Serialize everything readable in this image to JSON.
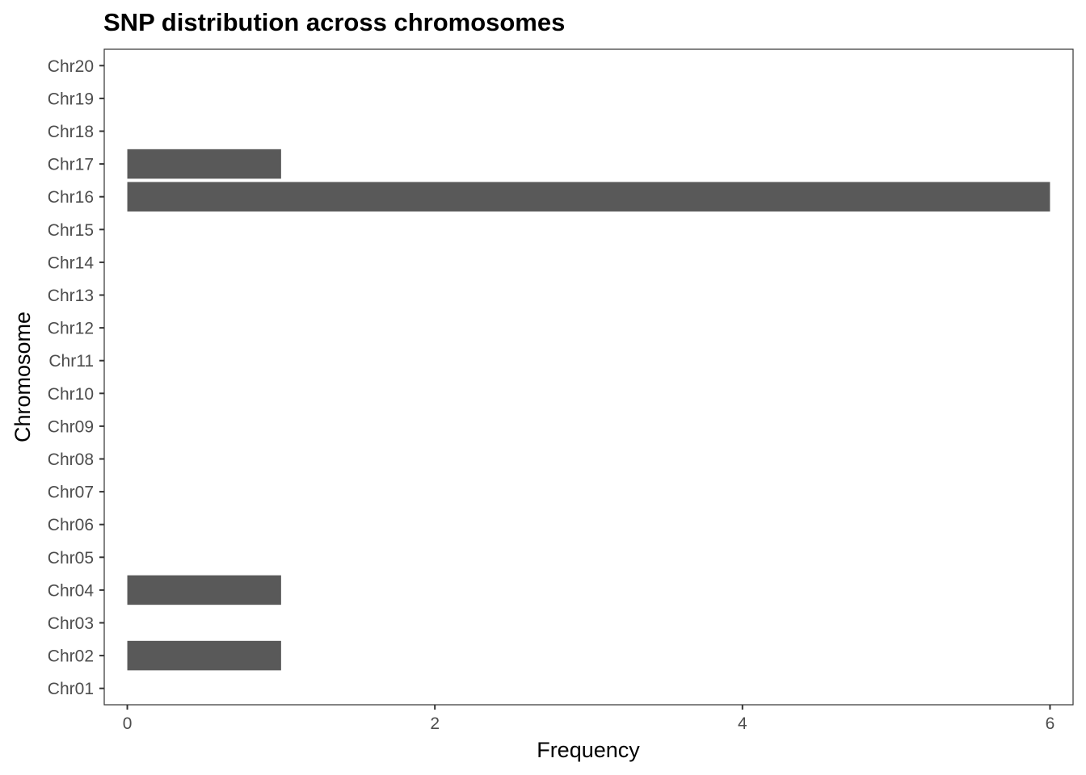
{
  "chart_data": {
    "type": "bar",
    "orientation": "horizontal",
    "title": "SNP distribution across chromosomes",
    "xlabel": "Frequency",
    "ylabel": "Chromosome",
    "categories": [
      "Chr01",
      "Chr02",
      "Chr03",
      "Chr04",
      "Chr05",
      "Chr06",
      "Chr07",
      "Chr08",
      "Chr09",
      "Chr10",
      "Chr11",
      "Chr12",
      "Chr13",
      "Chr14",
      "Chr15",
      "Chr16",
      "Chr17",
      "Chr18",
      "Chr19",
      "Chr20"
    ],
    "values": [
      0,
      1,
      0,
      1,
      0,
      0,
      0,
      0,
      0,
      0,
      0,
      0,
      0,
      0,
      0,
      6,
      1,
      0,
      0,
      0
    ],
    "xlim": [
      -0.15,
      6.15
    ],
    "xticks": [
      0,
      2,
      4,
      6
    ],
    "grid": false,
    "bar_color": "#595959",
    "axis_color": "#333333",
    "tick_label_color": "#4d4d4d"
  }
}
